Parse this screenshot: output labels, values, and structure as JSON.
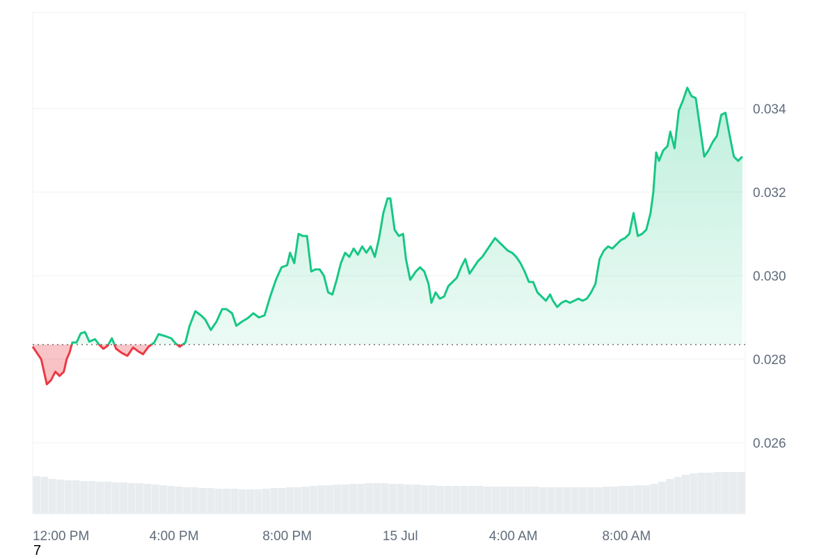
{
  "chart_data": {
    "type": "area",
    "baseline": 0.02835,
    "ylim": [
      0.0243,
      0.0363
    ],
    "y_ticks": [
      "0.026",
      "0.028",
      "0.030",
      "0.032",
      "0.034"
    ],
    "y_tick_values": [
      0.026,
      0.028,
      0.03,
      0.032,
      0.034
    ],
    "x_range_hours": [
      11.0,
      36.2
    ],
    "x_ticks": [
      "12:00 PM",
      "4:00 PM",
      "8:00 PM",
      "15 Jul",
      "4:00 AM",
      "8:00 AM"
    ],
    "x_tick_hours": [
      12,
      16,
      20,
      24,
      28,
      32
    ],
    "grid": true,
    "colors": {
      "up": "#16c784",
      "down": "#ea3943",
      "grid": "#eef0f3",
      "volume": "#e9ecef"
    },
    "series": [
      {
        "values": [
          [
            11.0,
            0.0283
          ],
          [
            11.3,
            0.028
          ],
          [
            11.5,
            0.0274
          ],
          [
            11.65,
            0.0275
          ],
          [
            11.8,
            0.0277
          ],
          [
            11.95,
            0.0276
          ],
          [
            12.1,
            0.0277
          ],
          [
            12.2,
            0.028
          ],
          [
            12.3,
            0.02815
          ],
          [
            12.4,
            0.0284
          ],
          [
            12.55,
            0.0284
          ],
          [
            12.7,
            0.02862
          ],
          [
            12.85,
            0.02865
          ],
          [
            13.0,
            0.02842
          ],
          [
            13.2,
            0.02848
          ],
          [
            13.35,
            0.02835
          ],
          [
            13.5,
            0.02825
          ],
          [
            13.65,
            0.02832
          ],
          [
            13.8,
            0.0285
          ],
          [
            13.95,
            0.02825
          ],
          [
            14.15,
            0.02815
          ],
          [
            14.35,
            0.02808
          ],
          [
            14.55,
            0.02828
          ],
          [
            14.75,
            0.02818
          ],
          [
            14.9,
            0.02812
          ],
          [
            15.1,
            0.0283
          ],
          [
            15.3,
            0.0284
          ],
          [
            15.45,
            0.0286
          ],
          [
            15.7,
            0.02855
          ],
          [
            15.9,
            0.0285
          ],
          [
            16.05,
            0.02838
          ],
          [
            16.2,
            0.0283
          ],
          [
            16.4,
            0.0284
          ],
          [
            16.55,
            0.0288
          ],
          [
            16.75,
            0.02915
          ],
          [
            16.95,
            0.02905
          ],
          [
            17.1,
            0.02895
          ],
          [
            17.3,
            0.0287
          ],
          [
            17.5,
            0.0289
          ],
          [
            17.7,
            0.0292
          ],
          [
            17.85,
            0.0292
          ],
          [
            18.05,
            0.0291
          ],
          [
            18.2,
            0.0288
          ],
          [
            18.4,
            0.0289
          ],
          [
            18.6,
            0.02898
          ],
          [
            18.8,
            0.0291
          ],
          [
            19.0,
            0.029
          ],
          [
            19.2,
            0.02905
          ],
          [
            19.4,
            0.0295
          ],
          [
            19.6,
            0.0299
          ],
          [
            19.8,
            0.0302
          ],
          [
            20.0,
            0.03025
          ],
          [
            20.1,
            0.03055
          ],
          [
            20.25,
            0.0303
          ],
          [
            20.4,
            0.031
          ],
          [
            20.55,
            0.03095
          ],
          [
            20.7,
            0.03095
          ],
          [
            20.85,
            0.0301
          ],
          [
            21.0,
            0.03015
          ],
          [
            21.15,
            0.03015
          ],
          [
            21.3,
            0.03
          ],
          [
            21.45,
            0.0296
          ],
          [
            21.6,
            0.02955
          ],
          [
            21.75,
            0.0299
          ],
          [
            21.9,
            0.0303
          ],
          [
            22.05,
            0.03055
          ],
          [
            22.2,
            0.03045
          ],
          [
            22.35,
            0.03065
          ],
          [
            22.5,
            0.0305
          ],
          [
            22.65,
            0.0307
          ],
          [
            22.8,
            0.03055
          ],
          [
            22.95,
            0.0307
          ],
          [
            23.1,
            0.03045
          ],
          [
            23.25,
            0.0309
          ],
          [
            23.4,
            0.0315
          ],
          [
            23.55,
            0.03185
          ],
          [
            23.65,
            0.03185
          ],
          [
            23.8,
            0.0311
          ],
          [
            23.95,
            0.03095
          ],
          [
            24.1,
            0.031
          ],
          [
            24.2,
            0.0304
          ],
          [
            24.35,
            0.0299
          ],
          [
            24.55,
            0.0301
          ],
          [
            24.7,
            0.0302
          ],
          [
            24.85,
            0.0301
          ],
          [
            25.0,
            0.0298
          ],
          [
            25.1,
            0.02935
          ],
          [
            25.25,
            0.0296
          ],
          [
            25.4,
            0.02945
          ],
          [
            25.55,
            0.0295
          ],
          [
            25.7,
            0.02975
          ],
          [
            25.85,
            0.02985
          ],
          [
            26.0,
            0.02995
          ],
          [
            26.15,
            0.0302
          ],
          [
            26.3,
            0.0304
          ],
          [
            26.45,
            0.03005
          ],
          [
            26.6,
            0.0302
          ],
          [
            26.75,
            0.03035
          ],
          [
            26.9,
            0.03045
          ],
          [
            27.05,
            0.0306
          ],
          [
            27.2,
            0.03075
          ],
          [
            27.35,
            0.0309
          ],
          [
            27.5,
            0.0308
          ],
          [
            27.65,
            0.0307
          ],
          [
            27.8,
            0.0306
          ],
          [
            27.95,
            0.03055
          ],
          [
            28.1,
            0.03045
          ],
          [
            28.25,
            0.0303
          ],
          [
            28.4,
            0.0301
          ],
          [
            28.55,
            0.02985
          ],
          [
            28.7,
            0.02985
          ],
          [
            28.85,
            0.0296
          ],
          [
            29.0,
            0.0295
          ],
          [
            29.15,
            0.0294
          ],
          [
            29.3,
            0.02955
          ],
          [
            29.4,
            0.0294
          ],
          [
            29.55,
            0.02925
          ],
          [
            29.7,
            0.02935
          ],
          [
            29.85,
            0.0294
          ],
          [
            30.0,
            0.02935
          ],
          [
            30.15,
            0.0294
          ],
          [
            30.3,
            0.02945
          ],
          [
            30.45,
            0.0294
          ],
          [
            30.6,
            0.02945
          ],
          [
            30.75,
            0.0296
          ],
          [
            30.9,
            0.0298
          ],
          [
            31.05,
            0.0304
          ],
          [
            31.2,
            0.0306
          ],
          [
            31.35,
            0.0307
          ],
          [
            31.5,
            0.03065
          ],
          [
            31.65,
            0.03075
          ],
          [
            31.8,
            0.03085
          ],
          [
            31.95,
            0.0309
          ],
          [
            32.1,
            0.031
          ],
          [
            32.25,
            0.0315
          ],
          [
            32.4,
            0.03095
          ],
          [
            32.55,
            0.031
          ],
          [
            32.7,
            0.0311
          ],
          [
            32.85,
            0.0315
          ],
          [
            32.95,
            0.032
          ],
          [
            33.05,
            0.03295
          ],
          [
            33.15,
            0.03275
          ],
          [
            33.3,
            0.033
          ],
          [
            33.45,
            0.0331
          ],
          [
            33.55,
            0.03345
          ],
          [
            33.7,
            0.03305
          ],
          [
            33.85,
            0.03395
          ],
          [
            34.0,
            0.0342
          ],
          [
            34.15,
            0.0345
          ],
          [
            34.3,
            0.0343
          ],
          [
            34.45,
            0.03425
          ],
          [
            34.6,
            0.03355
          ],
          [
            34.75,
            0.03285
          ],
          [
            34.9,
            0.033
          ],
          [
            35.05,
            0.0332
          ],
          [
            35.2,
            0.03335
          ],
          [
            35.35,
            0.03385
          ],
          [
            35.5,
            0.0339
          ],
          [
            35.65,
            0.03335
          ],
          [
            35.8,
            0.03285
          ],
          [
            35.95,
            0.03275
          ],
          [
            36.1,
            0.03285
          ]
        ]
      }
    ],
    "volume_relative": [
      0.54,
      0.53,
      0.5,
      0.49,
      0.48,
      0.48,
      0.47,
      0.47,
      0.46,
      0.46,
      0.45,
      0.45,
      0.44,
      0.44,
      0.43,
      0.42,
      0.41,
      0.4,
      0.39,
      0.38,
      0.38,
      0.37,
      0.37,
      0.36,
      0.36,
      0.36,
      0.35,
      0.35,
      0.35,
      0.36,
      0.37,
      0.37,
      0.38,
      0.38,
      0.39,
      0.4,
      0.41,
      0.41,
      0.42,
      0.42,
      0.43,
      0.43,
      0.44,
      0.44,
      0.44,
      0.43,
      0.43,
      0.42,
      0.42,
      0.41,
      0.41,
      0.4,
      0.4,
      0.4,
      0.4,
      0.4,
      0.4,
      0.39,
      0.39,
      0.39,
      0.39,
      0.39,
      0.39,
      0.39,
      0.38,
      0.38,
      0.38,
      0.38,
      0.38,
      0.38,
      0.38,
      0.38,
      0.39,
      0.39,
      0.4,
      0.4,
      0.41,
      0.41,
      0.43,
      0.46,
      0.5,
      0.53,
      0.56,
      0.58,
      0.59,
      0.59,
      0.6,
      0.6,
      0.6,
      0.6
    ]
  },
  "footnote": "7"
}
